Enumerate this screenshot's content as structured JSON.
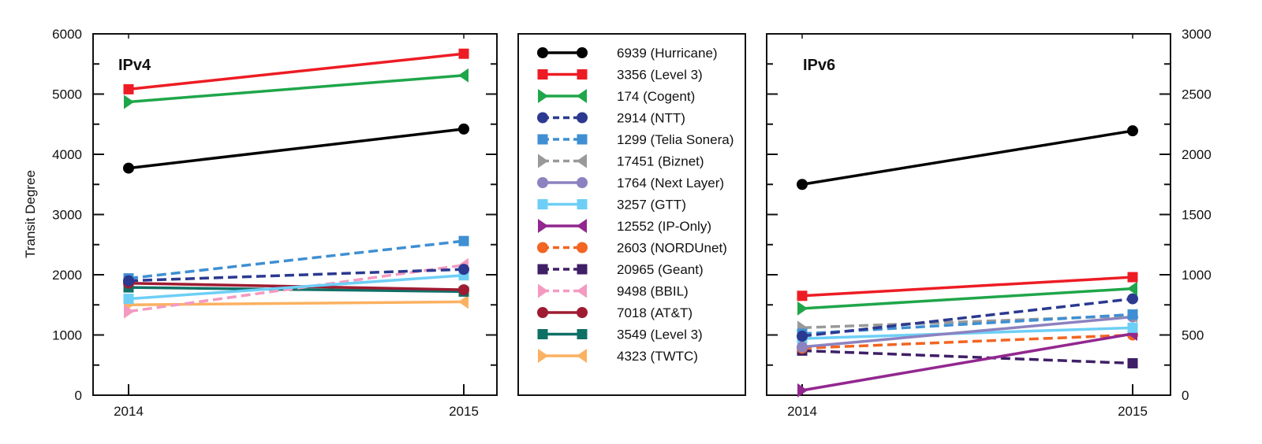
{
  "chart_data": [
    {
      "type": "line",
      "panel": "IPv4",
      "title": "IPv4",
      "xlabel": "",
      "ylabel": "Transit Degree",
      "x": [
        "2014",
        "2015"
      ],
      "ylim": [
        0,
        6000
      ],
      "yticks": [
        "0",
        "1000",
        "2000",
        "3000",
        "4000",
        "5000",
        "6000"
      ],
      "y_axis_side": "left",
      "series": [
        {
          "name": "6939 (Hurricane)",
          "values": [
            3770,
            4420
          ]
        },
        {
          "name": "3356 (Level 3)",
          "values": [
            5080,
            5670
          ]
        },
        {
          "name": "174 (Cogent)",
          "values": [
            4870,
            5310
          ]
        },
        {
          "name": "2914 (NTT)",
          "values": [
            1900,
            2090
          ]
        },
        {
          "name": "1299 (Telia Sonera)",
          "values": [
            1940,
            2560
          ]
        },
        {
          "name": "3257 (GTT)",
          "values": [
            1600,
            1990
          ]
        },
        {
          "name": "9498 (BBIL)",
          "values": [
            1390,
            2160
          ]
        },
        {
          "name": "7018 (AT&T)",
          "values": [
            1860,
            1750
          ]
        },
        {
          "name": "3549 (Level 3)",
          "values": [
            1790,
            1720
          ]
        },
        {
          "name": "4323 (TWTC)",
          "values": [
            1500,
            1550
          ]
        }
      ]
    },
    {
      "type": "line",
      "panel": "IPv6",
      "title": "IPv6",
      "xlabel": "",
      "ylabel": "",
      "x": [
        "2014",
        "2015"
      ],
      "ylim": [
        0,
        3000
      ],
      "yticks": [
        "0",
        "500",
        "1000",
        "1500",
        "2000",
        "2500",
        "3000"
      ],
      "y_axis_side": "right",
      "series": [
        {
          "name": "6939 (Hurricane)",
          "values": [
            1750,
            2195
          ]
        },
        {
          "name": "3356 (Level 3)",
          "values": [
            825,
            980
          ]
        },
        {
          "name": "174 (Cogent)",
          "values": [
            720,
            885
          ]
        },
        {
          "name": "2914 (NTT)",
          "values": [
            490,
            800
          ]
        },
        {
          "name": "1299 (Telia Sonera)",
          "values": [
            510,
            670
          ]
        },
        {
          "name": "17451 (Biznet)",
          "values": [
            560,
            660
          ]
        },
        {
          "name": "1764 (Next Layer)",
          "values": [
            400,
            650
          ]
        },
        {
          "name": "3257 (GTT)",
          "values": [
            470,
            560
          ]
        },
        {
          "name": "12552 (IP-Only)",
          "values": [
            40,
            510
          ]
        },
        {
          "name": "2603 (NORDUnet)",
          "values": [
            390,
            500
          ]
        },
        {
          "name": "20965 (Geant)",
          "values": [
            370,
            265
          ]
        }
      ]
    }
  ],
  "legend": {
    "placement": "center",
    "entries": [
      {
        "name": "6939 (Hurricane)",
        "color": "#000000",
        "marker": "circle",
        "dashed": false
      },
      {
        "name": "3356 (Level 3)",
        "color": "#ed1c24",
        "marker": "square",
        "dashed": false
      },
      {
        "name": "174 (Cogent)",
        "color": "#1fa64a",
        "marker": "triangle",
        "dashed": false
      },
      {
        "name": "2914 (NTT)",
        "color": "#2b3990",
        "marker": "circle",
        "dashed": true
      },
      {
        "name": "1299 (Telia Sonera)",
        "color": "#3f8fd2",
        "marker": "square",
        "dashed": true
      },
      {
        "name": "17451 (Biznet)",
        "color": "#999999",
        "marker": "triangle",
        "dashed": true
      },
      {
        "name": "1764 (Next Layer)",
        "color": "#8c82c0",
        "marker": "circle",
        "dashed": false
      },
      {
        "name": "3257 (GTT)",
        "color": "#6dcff6",
        "marker": "square",
        "dashed": false
      },
      {
        "name": "12552 (IP-Only)",
        "color": "#92278f",
        "marker": "triangle",
        "dashed": false
      },
      {
        "name": "2603 (NORDUnet)",
        "color": "#f26522",
        "marker": "circle",
        "dashed": true
      },
      {
        "name": "20965 (Geant)",
        "color": "#3f1f66",
        "marker": "square",
        "dashed": true
      },
      {
        "name": "9498 (BBIL)",
        "color": "#f49ac1",
        "marker": "triangle",
        "dashed": true
      },
      {
        "name": "7018 (AT&T)",
        "color": "#9e1b32",
        "marker": "circle",
        "dashed": false
      },
      {
        "name": "3549 (Level 3)",
        "color": "#0f7066",
        "marker": "square",
        "dashed": false
      },
      {
        "name": "4323 (TWTC)",
        "color": "#fbb161",
        "marker": "triangle",
        "dashed": false
      }
    ]
  }
}
